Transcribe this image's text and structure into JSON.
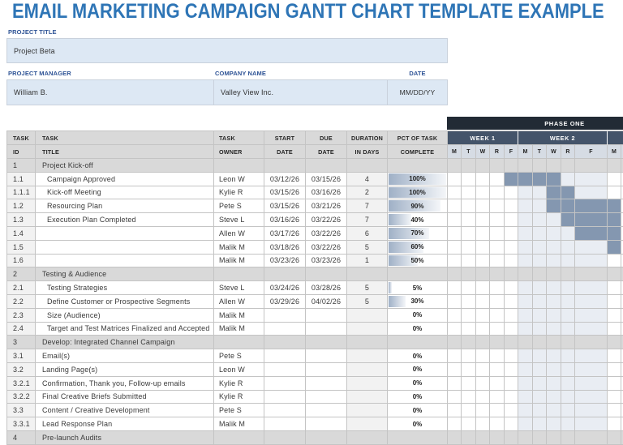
{
  "title": "EMAIL MARKETING CAMPAIGN GANTT CHART TEMPLATE EXAMPLE",
  "project": {
    "title_label": "PROJECT TITLE",
    "title_value": "Project Beta",
    "manager_label": "PROJECT MANAGER",
    "manager_value": "William B.",
    "company_label": "COMPANY NAME",
    "company_value": "Valley View Inc.",
    "date_label": "DATE",
    "date_value": "MM/DD/YY"
  },
  "table": {
    "headers": [
      {
        "line1": "TASK",
        "line2": "ID"
      },
      {
        "line1": "TASK",
        "line2": "TITLE"
      },
      {
        "line1": "TASK",
        "line2": "OWNER"
      },
      {
        "line1": "START",
        "line2": "DATE"
      },
      {
        "line1": "DUE",
        "line2": "DATE"
      },
      {
        "line1": "DURATION",
        "line2": "IN DAYS"
      },
      {
        "line1": "PCT OF TASK",
        "line2": "COMPLETE"
      }
    ],
    "rows": [
      {
        "type": "section",
        "id": "1",
        "title": "Project Kick-off",
        "owner": "",
        "start": "",
        "due": "",
        "duration": "",
        "pct": "",
        "pct_value": 0,
        "indent": false,
        "bars": []
      },
      {
        "type": "task",
        "id": "1.1",
        "title": "Campaign Approved",
        "owner": "Leon W",
        "start": "03/12/26",
        "due": "03/15/26",
        "duration": "4",
        "pct": "100%",
        "pct_value": 100,
        "indent": true,
        "bars": [
          4,
          5,
          6,
          7
        ]
      },
      {
        "type": "task",
        "id": "1.1.1",
        "title": "Kick-off Meeting",
        "owner": "Kylie R",
        "start": "03/15/26",
        "due": "03/16/26",
        "duration": "2",
        "pct": "100%",
        "pct_value": 100,
        "indent": true,
        "bars": [
          7,
          8
        ]
      },
      {
        "type": "task",
        "id": "1.2",
        "title": "Resourcing Plan",
        "owner": "Pete S",
        "start": "03/15/26",
        "due": "03/21/26",
        "duration": "7",
        "pct": "90%",
        "pct_value": 90,
        "indent": true,
        "bars": [
          7,
          8,
          9,
          10
        ]
      },
      {
        "type": "task",
        "id": "1.3",
        "title": "Execution Plan Completed",
        "owner": "Steve L",
        "start": "03/16/26",
        "due": "03/22/26",
        "duration": "7",
        "pct": "40%",
        "pct_value": 40,
        "indent": true,
        "bars": [
          8,
          9,
          10
        ]
      },
      {
        "type": "task",
        "id": "1.4",
        "title": "",
        "owner": "Allen W",
        "start": "03/17/26",
        "due": "03/22/26",
        "duration": "6",
        "pct": "70%",
        "pct_value": 70,
        "indent": true,
        "bars": [
          9,
          10
        ]
      },
      {
        "type": "task",
        "id": "1.5",
        "title": "",
        "owner": "Malik M",
        "start": "03/18/26",
        "due": "03/22/26",
        "duration": "5",
        "pct": "60%",
        "pct_value": 60,
        "indent": true,
        "bars": [
          10
        ]
      },
      {
        "type": "task",
        "id": "1.6",
        "title": "",
        "owner": "Malik M",
        "start": "03/23/26",
        "due": "03/23/26",
        "duration": "1",
        "pct": "50%",
        "pct_value": 50,
        "indent": true,
        "bars": []
      },
      {
        "type": "section",
        "id": "2",
        "title": "Testing & Audience",
        "owner": "",
        "start": "",
        "due": "",
        "duration": "",
        "pct": "",
        "pct_value": 0,
        "indent": false,
        "bars": []
      },
      {
        "type": "task",
        "id": "2.1",
        "title": "Testing Strategies",
        "owner": "Steve L",
        "start": "03/24/26",
        "due": "03/28/26",
        "duration": "5",
        "pct": "5%",
        "pct_value": 5,
        "indent": true,
        "bars": []
      },
      {
        "type": "task",
        "id": "2.2",
        "title": "Define Customer or Prospective Segments",
        "owner": "Allen W",
        "start": "03/29/26",
        "due": "04/02/26",
        "duration": "5",
        "pct": "30%",
        "pct_value": 30,
        "indent": true,
        "bars": []
      },
      {
        "type": "task",
        "id": "2.3",
        "title": "Size (Audience)",
        "owner": "Malik M",
        "start": "",
        "due": "",
        "duration": "",
        "pct": "0%",
        "pct_value": 0,
        "indent": true,
        "bars": []
      },
      {
        "type": "task",
        "id": "2.4",
        "title": "Target and Test Matrices Finalized and Accepted",
        "owner": "Malik M",
        "start": "",
        "due": "",
        "duration": "",
        "pct": "0%",
        "pct_value": 0,
        "indent": true,
        "bars": []
      },
      {
        "type": "section",
        "id": "3",
        "title": "Develop: Integrated Channel Campaign",
        "owner": "",
        "start": "",
        "due": "",
        "duration": "",
        "pct": "",
        "pct_value": 0,
        "indent": false,
        "bars": []
      },
      {
        "type": "task",
        "id": "3.1",
        "title": "Email(s)",
        "owner": "Pete S",
        "start": "",
        "due": "",
        "duration": "",
        "pct": "0%",
        "pct_value": 0,
        "indent": false,
        "bars": []
      },
      {
        "type": "task",
        "id": "3.2",
        "title": "Landing Page(s)",
        "owner": "Leon W",
        "start": "",
        "due": "",
        "duration": "",
        "pct": "0%",
        "pct_value": 0,
        "indent": false,
        "bars": []
      },
      {
        "type": "task",
        "id": "3.2.1",
        "title": "Confirmation, Thank you, Follow-up emails",
        "owner": "Kylie R",
        "start": "",
        "due": "",
        "duration": "",
        "pct": "0%",
        "pct_value": 0,
        "indent": false,
        "bars": []
      },
      {
        "type": "task",
        "id": "3.2.2",
        "title": "Final Creative Briefs Submitted",
        "owner": "Kylie R",
        "start": "",
        "due": "",
        "duration": "",
        "pct": "0%",
        "pct_value": 0,
        "indent": false,
        "bars": []
      },
      {
        "type": "task",
        "id": "3.3",
        "title": "Content / Creative Development",
        "owner": "Pete S",
        "start": "",
        "due": "",
        "duration": "",
        "pct": "0%",
        "pct_value": 0,
        "indent": false,
        "bars": []
      },
      {
        "type": "task",
        "id": "3.3.1",
        "title": "Lead Response Plan",
        "owner": "Malik M",
        "start": "",
        "due": "",
        "duration": "",
        "pct": "0%",
        "pct_value": 0,
        "indent": false,
        "bars": []
      },
      {
        "type": "section",
        "id": "4",
        "title": "Pre-launch Audits",
        "owner": "",
        "start": "",
        "due": "",
        "duration": "",
        "pct": "",
        "pct_value": 0,
        "indent": false,
        "bars": []
      }
    ]
  },
  "gantt": {
    "phase": "PHASE ONE",
    "weeks": [
      "WEEK 1",
      "WEEK 2",
      ""
    ],
    "days": [
      "M",
      "T",
      "W",
      "R",
      "F",
      "M",
      "T",
      "W",
      "R",
      "F",
      "M",
      ""
    ],
    "colors": {
      "bar": "#8497b0",
      "phase_header": "#222b35",
      "week_header": "#44546a",
      "day_header": "#d6dce4",
      "alt_week_fill": "#e9edf3",
      "section_fill": "#d9d9d9",
      "title": "#2e75b6",
      "label": "#2f5496",
      "input_fill": "#dde8f4"
    }
  }
}
